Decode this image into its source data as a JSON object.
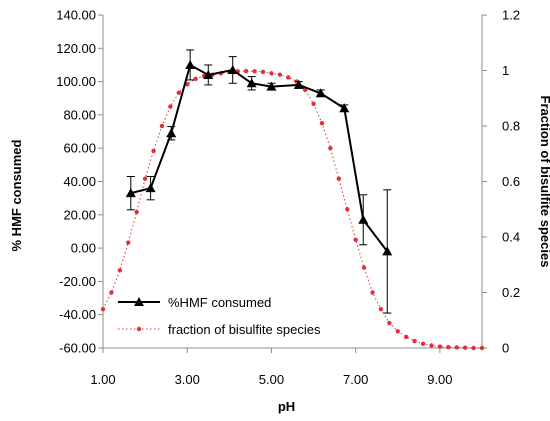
{
  "chart_data": {
    "type": "line",
    "x_axis": {
      "label": "pH",
      "range": [
        1.0,
        10.0
      ],
      "tick_values": [
        1.0,
        3.0,
        5.0,
        7.0,
        9.0
      ],
      "tick_labels": [
        "1.00",
        "3.00",
        "5.00",
        "7.00",
        "9.00"
      ]
    },
    "y_axis_left": {
      "label": "% HMF consumed",
      "range": [
        -60,
        140
      ],
      "tick_values": [
        -60,
        -40,
        -20,
        0,
        20,
        40,
        60,
        80,
        100,
        120,
        140
      ],
      "tick_labels": [
        "-60.00",
        "-40.00",
        "-20.00",
        "0.00",
        "20.00",
        "40.00",
        "60.00",
        "80.00",
        "100.00",
        "120.00",
        "140.00"
      ]
    },
    "y_axis_right": {
      "label": "Fraction of bisulfite species",
      "range": [
        0,
        1.2
      ],
      "tick_values": [
        0,
        0.2,
        0.4,
        0.6,
        0.8,
        1.0,
        1.2
      ],
      "tick_labels": [
        "0",
        "0.2",
        "0.4",
        "0.6",
        "0.8",
        "1",
        "1.2"
      ]
    },
    "grid": false,
    "legend_position": "bottom-left",
    "series": [
      {
        "name": "%HMF consumed",
        "axis": "left",
        "style": "black solid line with triangle markers and error bars",
        "color": "#000000",
        "points": [
          {
            "x": 1.66,
            "y": 33,
            "err": 10
          },
          {
            "x": 2.13,
            "y": 36,
            "err": 7
          },
          {
            "x": 2.62,
            "y": 69,
            "err": 4
          },
          {
            "x": 3.07,
            "y": 110,
            "err": 9
          },
          {
            "x": 3.5,
            "y": 104,
            "err": 6
          },
          {
            "x": 4.08,
            "y": 107,
            "err": 8
          },
          {
            "x": 4.53,
            "y": 99,
            "err": 4
          },
          {
            "x": 5.0,
            "y": 97,
            "err": 2
          },
          {
            "x": 5.65,
            "y": 98,
            "err": 2
          },
          {
            "x": 6.17,
            "y": 93,
            "err": 2
          },
          {
            "x": 6.73,
            "y": 84,
            "err": 2
          },
          {
            "x": 7.18,
            "y": 17,
            "err": 15
          },
          {
            "x": 7.75,
            "y": -2,
            "err": 37
          }
        ]
      },
      {
        "name": "fraction of bisulfite species",
        "axis": "right",
        "style": "red dotted line with small circle markers",
        "color": "#e0313b",
        "points": [
          {
            "x": 1.0,
            "y": 0.14
          },
          {
            "x": 1.2,
            "y": 0.2
          },
          {
            "x": 1.4,
            "y": 0.28
          },
          {
            "x": 1.6,
            "y": 0.38
          },
          {
            "x": 1.8,
            "y": 0.49
          },
          {
            "x": 2.0,
            "y": 0.61
          },
          {
            "x": 2.2,
            "y": 0.71
          },
          {
            "x": 2.4,
            "y": 0.8
          },
          {
            "x": 2.6,
            "y": 0.87
          },
          {
            "x": 2.8,
            "y": 0.92
          },
          {
            "x": 3.0,
            "y": 0.95
          },
          {
            "x": 3.2,
            "y": 0.97
          },
          {
            "x": 3.4,
            "y": 0.98
          },
          {
            "x": 3.6,
            "y": 0.985
          },
          {
            "x": 3.8,
            "y": 0.99
          },
          {
            "x": 4.0,
            "y": 0.995
          },
          {
            "x": 4.2,
            "y": 0.997
          },
          {
            "x": 4.4,
            "y": 0.998
          },
          {
            "x": 4.6,
            "y": 0.997
          },
          {
            "x": 4.8,
            "y": 0.995
          },
          {
            "x": 5.0,
            "y": 0.99
          },
          {
            "x": 5.2,
            "y": 0.985
          },
          {
            "x": 5.4,
            "y": 0.975
          },
          {
            "x": 5.6,
            "y": 0.96
          },
          {
            "x": 5.8,
            "y": 0.93
          },
          {
            "x": 6.0,
            "y": 0.88
          },
          {
            "x": 6.2,
            "y": 0.81
          },
          {
            "x": 6.4,
            "y": 0.72
          },
          {
            "x": 6.6,
            "y": 0.61
          },
          {
            "x": 6.8,
            "y": 0.5
          },
          {
            "x": 7.0,
            "y": 0.39
          },
          {
            "x": 7.2,
            "y": 0.29
          },
          {
            "x": 7.4,
            "y": 0.2
          },
          {
            "x": 7.6,
            "y": 0.14
          },
          {
            "x": 7.8,
            "y": 0.09
          },
          {
            "x": 8.0,
            "y": 0.06
          },
          {
            "x": 8.2,
            "y": 0.04
          },
          {
            "x": 8.4,
            "y": 0.025
          },
          {
            "x": 8.6,
            "y": 0.015
          },
          {
            "x": 8.8,
            "y": 0.009
          },
          {
            "x": 9.0,
            "y": 0.005
          },
          {
            "x": 9.2,
            "y": 0.003
          },
          {
            "x": 9.4,
            "y": 0.002
          },
          {
            "x": 9.6,
            "y": 0.001
          },
          {
            "x": 9.8,
            "y": 0.0
          },
          {
            "x": 10.0,
            "y": 0.0
          }
        ]
      }
    ]
  }
}
